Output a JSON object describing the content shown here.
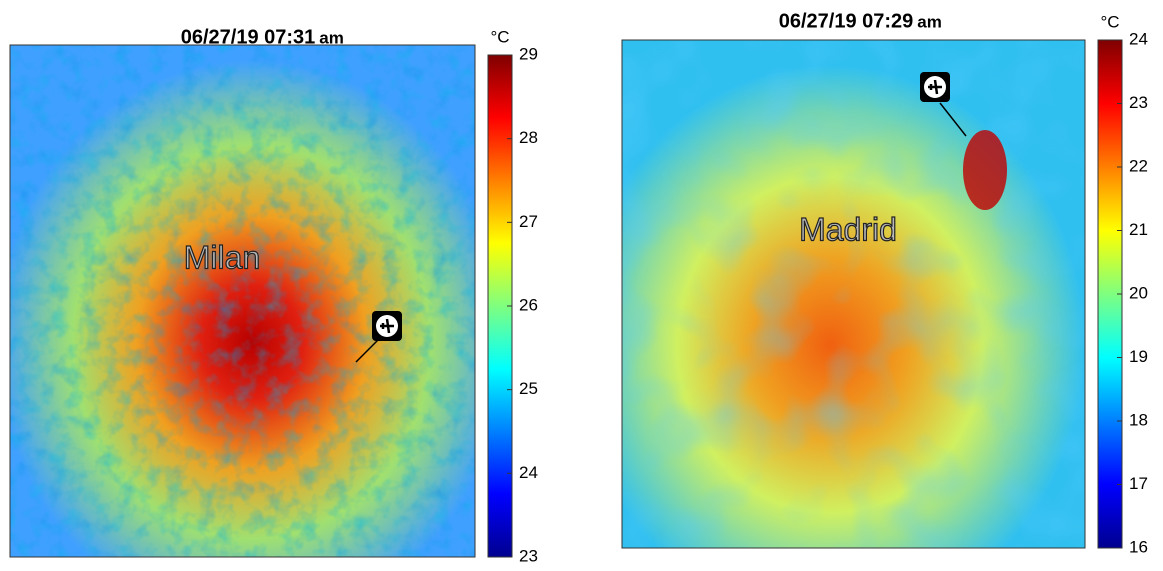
{
  "panels": [
    {
      "title": "06/27/19 07:31",
      "title_suffix": "am",
      "city": "Milan",
      "unit": "°C",
      "colorbar": {
        "lim": [
          23,
          29
        ],
        "ticks": [
          23,
          24,
          25,
          26,
          27,
          28,
          29
        ]
      }
    },
    {
      "title": "06/27/19 07:29",
      "title_suffix": "am",
      "city": "Madrid",
      "unit": "°C",
      "colorbar": {
        "lim": [
          16,
          24
        ],
        "ticks": [
          16,
          17,
          18,
          19,
          20,
          21,
          22,
          23,
          24
        ]
      }
    }
  ]
}
